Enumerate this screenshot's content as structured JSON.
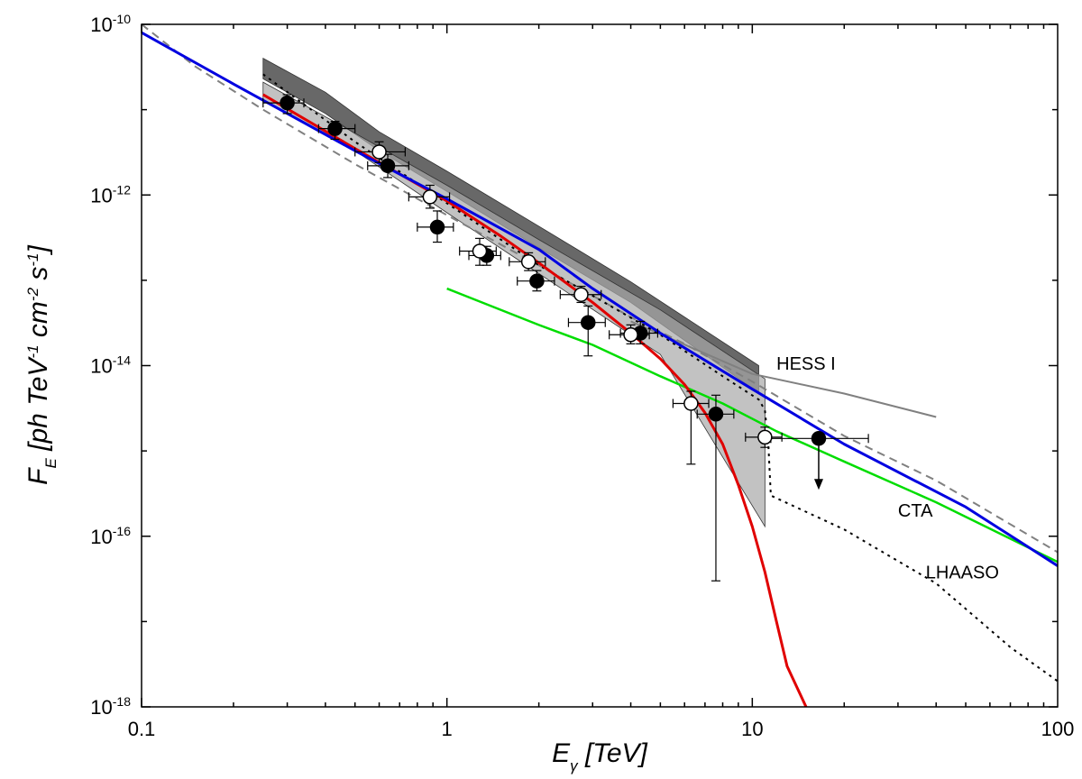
{
  "chart_data": {
    "type": "scatter",
    "xscale": "log",
    "yscale": "log",
    "xlim": [
      0.1,
      100
    ],
    "ylim": [
      1e-18,
      1e-10
    ],
    "x_ticks": [
      {
        "value": 0.1,
        "label": "0.1"
      },
      {
        "value": 1,
        "label": "1"
      },
      {
        "value": 10,
        "label": "10"
      },
      {
        "value": 100,
        "label": "100"
      }
    ],
    "y_ticks": [
      {
        "value": 1e-18,
        "base": "10",
        "exp": "-18"
      },
      {
        "value": 1e-16,
        "base": "10",
        "exp": "-16"
      },
      {
        "value": 1e-14,
        "base": "10",
        "exp": "-14"
      },
      {
        "value": 1e-12,
        "base": "10",
        "exp": "-12"
      },
      {
        "value": 1e-10,
        "base": "10",
        "exp": "-10"
      }
    ],
    "xlabel": {
      "main": "E",
      "sub": "γ",
      "rest": " [TeV]"
    },
    "ylabel": {
      "parts": [
        {
          "t": "F",
          "k": "n"
        },
        {
          "t": "E",
          "k": "sub"
        },
        {
          "t": " [ph TeV",
          "k": "n"
        },
        {
          "t": "-1",
          "k": "sup"
        },
        {
          "t": " cm",
          "k": "n"
        },
        {
          "t": "-2",
          "k": "sup"
        },
        {
          "t": " s",
          "k": "n"
        },
        {
          "t": "-1",
          "k": "sup"
        },
        {
          "t": "]",
          "k": "n"
        }
      ]
    },
    "annotations": [
      {
        "text": "HESS I",
        "x": 12.0,
        "y": 9e-15
      },
      {
        "text": "CTA",
        "x": 30.0,
        "y": 1.7e-16
      },
      {
        "text": "LHAASO",
        "x": 37.0,
        "y": 3.2e-17
      }
    ],
    "bands": [
      {
        "name": "dark band",
        "color": "#606060",
        "opacity": 0.95,
        "upper": [
          [
            0.25,
            4e-11
          ],
          [
            0.4,
            1.6e-11
          ],
          [
            0.6,
            5.5e-12
          ],
          [
            1.0,
            1.9e-12
          ],
          [
            2.0,
            4.3e-13
          ],
          [
            4.0,
            9.6e-14
          ],
          [
            10.5,
            1e-14
          ]
        ],
        "lower": [
          [
            0.25,
            2.3e-11
          ],
          [
            0.4,
            9e-12
          ],
          [
            0.6,
            3.3e-12
          ],
          [
            1.0,
            1.1e-12
          ],
          [
            2.0,
            2.4e-13
          ],
          [
            4.0,
            5.5e-14
          ],
          [
            10.5,
            4.8e-15
          ]
        ]
      },
      {
        "name": "light band",
        "color": "#a8a8a8",
        "opacity": 0.7,
        "upper": [
          [
            0.25,
            2.1e-11
          ],
          [
            0.5,
            5.3e-12
          ],
          [
            1.0,
            1.3e-12
          ],
          [
            2.0,
            3e-13
          ],
          [
            5.0,
            4.5e-14
          ],
          [
            11.0,
            7e-15
          ]
        ],
        "lower": [
          [
            0.25,
            1.3e-11
          ],
          [
            0.5,
            3.3e-12
          ],
          [
            1.0,
            6.2e-13
          ],
          [
            2.0,
            1.2e-13
          ],
          [
            5.0,
            1.35e-14
          ],
          [
            11.0,
            1.3e-16
          ]
        ]
      }
    ],
    "series": [
      {
        "name": "HESS I sensitivity",
        "color": "#808080",
        "width": 2,
        "dash": "",
        "points": [
          [
            4.0,
            3.3e-14
          ],
          [
            10.0,
            8e-15
          ],
          [
            20.0,
            4.7e-15
          ],
          [
            40.0,
            2.5e-15
          ]
        ]
      },
      {
        "name": "CTA sensitivity",
        "color": "#808080",
        "width": 2,
        "dash": "9,6",
        "points": [
          [
            0.1,
            1e-10
          ],
          [
            0.15,
            3.2e-11
          ],
          [
            0.25,
            1e-11
          ],
          [
            0.5,
            2.3e-12
          ],
          [
            1.0,
            5.8e-13
          ],
          [
            2.0,
            1.5e-13
          ],
          [
            4.0,
            3.7e-14
          ],
          [
            6.0,
            1.8e-14
          ],
          [
            10.0,
            6.5e-15
          ],
          [
            20.0,
            1.5e-15
          ],
          [
            40.0,
            4.5e-16
          ],
          [
            100.0,
            6.5e-17
          ]
        ]
      },
      {
        "name": "LHAASO sensitivity",
        "color": "#000000",
        "width": 2,
        "dash": "3,5",
        "points": [
          [
            0.25,
            2.6e-11
          ],
          [
            0.5,
            4.2e-12
          ],
          [
            1.0,
            8e-13
          ],
          [
            2.0,
            1.5e-13
          ],
          [
            3.0,
            6.6e-14
          ],
          [
            5.0,
            2.3e-14
          ],
          [
            8.0,
            7.5e-15
          ],
          [
            10.5,
            4e-15
          ],
          [
            11.0,
            3e-15
          ],
          [
            11.3,
            1.1e-15
          ],
          [
            11.5,
            3e-16
          ],
          [
            20.0,
            1.2e-16
          ],
          [
            40.0,
            2.8e-17
          ],
          [
            70.0,
            5e-18
          ],
          [
            100.0,
            2e-18
          ]
        ]
      },
      {
        "name": "green model",
        "color": "#00dd00",
        "width": 2.5,
        "dash": "",
        "points": [
          [
            1.0,
            8e-14
          ],
          [
            2.0,
            3e-14
          ],
          [
            3.0,
            1.75e-14
          ],
          [
            5.0,
            7.5e-15
          ],
          [
            8.0,
            3.6e-15
          ],
          [
            12.0,
            1.7e-15
          ],
          [
            20.0,
            7.5e-16
          ],
          [
            40.0,
            2.5e-16
          ],
          [
            100.0,
            5e-17
          ]
        ]
      },
      {
        "name": "red model",
        "color": "#e00000",
        "width": 3,
        "dash": "",
        "points": [
          [
            0.25,
            1.5e-11
          ],
          [
            0.5,
            3.5e-12
          ],
          [
            1.0,
            8.5e-13
          ],
          [
            1.5,
            3.3e-13
          ],
          [
            2.0,
            1.6e-13
          ],
          [
            3.0,
            5.5e-14
          ],
          [
            4.0,
            2.4e-14
          ],
          [
            5.0,
            1.2e-14
          ],
          [
            6.0,
            6e-15
          ],
          [
            7.0,
            2.8e-15
          ],
          [
            8.0,
            1.2e-15
          ],
          [
            9.0,
            4e-16
          ],
          [
            10.0,
            1.3e-16
          ],
          [
            11.0,
            3.8e-17
          ],
          [
            12.0,
            1e-17
          ],
          [
            13.0,
            3e-18
          ],
          [
            15.0,
            1e-18
          ]
        ]
      },
      {
        "name": "blue model",
        "color": "#0000e0",
        "width": 3,
        "dash": "",
        "points": [
          [
            0.1,
            8e-11
          ],
          [
            0.2,
            2e-11
          ],
          [
            0.5,
            3.3e-12
          ],
          [
            1.0,
            9e-13
          ],
          [
            2.0,
            2.3e-13
          ],
          [
            3.0,
            8e-14
          ],
          [
            5.0,
            2.4e-14
          ],
          [
            10.0,
            5.3e-15
          ],
          [
            20.0,
            1.2e-15
          ],
          [
            50.0,
            2.2e-16
          ],
          [
            100.0,
            4.5e-17
          ]
        ]
      }
    ],
    "data_points": [
      {
        "name": "filled",
        "marker": "filled",
        "points": [
          {
            "x": 0.3,
            "y": 1.2e-11,
            "xerr": [
              0.25,
              0.34
            ],
            "yerr": [
              9e-12,
              1.5e-11
            ]
          },
          {
            "x": 0.43,
            "y": 6e-12,
            "xerr": [
              0.38,
              0.5
            ],
            "yerr": [
              4.5e-12,
              7.3e-12
            ]
          },
          {
            "x": 0.64,
            "y": 2.2e-12,
            "xerr": [
              0.55,
              0.75
            ],
            "yerr": [
              1.6e-12,
              3e-12
            ]
          },
          {
            "x": 0.93,
            "y": 4.2e-13,
            "xerr": [
              0.8,
              1.05
            ],
            "yerr": [
              2.8e-13,
              6.5e-13
            ]
          },
          {
            "x": 1.35,
            "y": 1.95e-13,
            "xerr": [
              1.18,
              1.5
            ],
            "yerr": [
              1.5e-13,
              2.5e-13
            ]
          },
          {
            "x": 1.97,
            "y": 9.8e-14,
            "xerr": [
              1.7,
              2.25
            ],
            "yerr": [
              7.5e-14,
              1.3e-13
            ]
          },
          {
            "x": 2.9,
            "y": 3.2e-14,
            "xerr": [
              2.5,
              3.3
            ],
            "yerr": [
              1.3e-14,
              5e-14
            ]
          },
          {
            "x": 4.3,
            "y": 2.4e-14,
            "xerr": [
              3.7,
              4.9
            ],
            "yerr": [
              1.8e-14,
              3.3e-14
            ]
          },
          {
            "x": 7.6,
            "y": 2.7e-15,
            "xerr": [
              6.6,
              8.7
            ],
            "yerr": [
              3e-17,
              4.5e-15
            ]
          },
          {
            "x": 16.5,
            "y": 1.4e-15,
            "xerr": [
              11.5,
              24.0
            ],
            "yerr": [
              1.4e-15,
              1.4e-15
            ],
            "upper_limit": true,
            "arrow_to": 3.5e-16
          }
        ]
      },
      {
        "name": "open",
        "marker": "open",
        "points": [
          {
            "x": 0.6,
            "y": 3.2e-12,
            "xerr": [
              0.5,
              0.73
            ],
            "yerr": [
              2.4e-12,
              4.2e-12
            ]
          },
          {
            "x": 0.88,
            "y": 9.5e-13,
            "xerr": [
              0.75,
              1.02
            ],
            "yerr": [
              7e-13,
              1.3e-12
            ]
          },
          {
            "x": 1.28,
            "y": 2.2e-13,
            "xerr": [
              1.1,
              1.45
            ],
            "yerr": [
              1.5e-13,
              3.1e-13
            ]
          },
          {
            "x": 1.85,
            "y": 1.65e-13,
            "xerr": [
              1.6,
              2.1
            ],
            "yerr": [
              1.3e-13,
              2.1e-13
            ]
          },
          {
            "x": 2.75,
            "y": 6.8e-14,
            "xerr": [
              2.35,
              3.2
            ],
            "yerr": [
              5.5e-14,
              8.5e-14
            ]
          },
          {
            "x": 4.0,
            "y": 2.3e-14,
            "xerr": [
              3.4,
              4.6
            ],
            "yerr": [
              1.8e-14,
              3e-14
            ]
          },
          {
            "x": 6.3,
            "y": 3.6e-15,
            "xerr": [
              5.5,
              7.2
            ],
            "yerr": [
              7e-16,
              5e-15
            ]
          },
          {
            "x": 11.0,
            "y": 1.45e-15,
            "xerr": [
              9.5,
              12.5
            ],
            "yerr": [
              1.1e-15,
              1.9e-15
            ]
          }
        ]
      }
    ]
  }
}
